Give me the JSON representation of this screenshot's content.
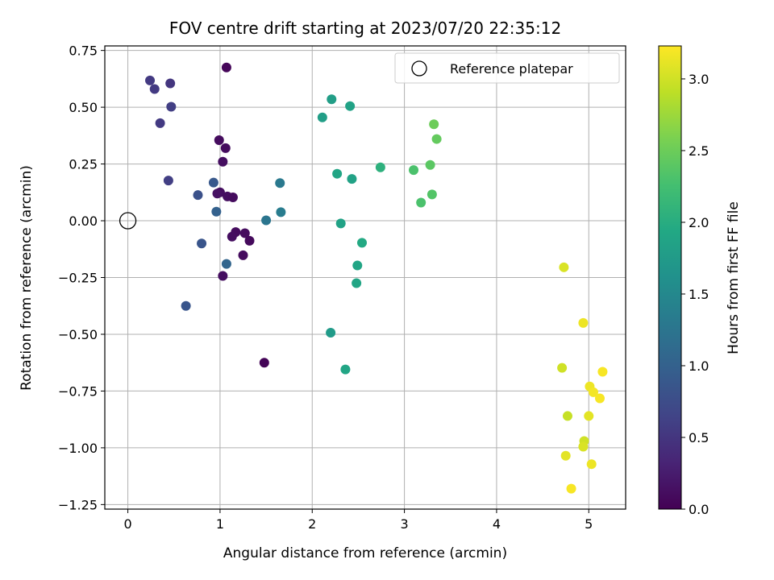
{
  "chart_data": {
    "type": "scatter",
    "title": "FOV centre drift starting at 2023/07/20 22:35:12",
    "xlabel": "Angular distance from reference (arcmin)",
    "ylabel": "Rotation from reference (arcmin)",
    "xlim": [
      -0.25,
      5.4
    ],
    "ylim": [
      -1.27,
      0.77
    ],
    "xticks": [
      0,
      1,
      2,
      3,
      4,
      5
    ],
    "xtick_labels": [
      "0",
      "1",
      "2",
      "3",
      "4",
      "5"
    ],
    "yticks": [
      0.75,
      0.5,
      0.25,
      0.0,
      -0.25,
      -0.5,
      -0.75,
      -1.0,
      -1.25
    ],
    "ytick_labels": [
      "0.75",
      "0.50",
      "0.25",
      "0.00",
      "−0.25",
      "−0.50",
      "−0.75",
      "−1.00",
      "−1.25"
    ],
    "grid": true,
    "legend": {
      "position": "top-right",
      "entries": [
        "Reference platepar"
      ]
    },
    "reference_point": {
      "x": 0.0,
      "y": 0.0
    },
    "colorbar": {
      "label": "Hours from first FF file",
      "colormap": "viridis",
      "range": [
        0.0,
        3.23
      ],
      "ticks": [
        0.0,
        0.5,
        1.0,
        1.5,
        2.0,
        2.5,
        3.0
      ],
      "tick_labels": [
        "0.0",
        "0.5",
        "1.0",
        "1.5",
        "2.0",
        "2.5",
        "3.0"
      ]
    },
    "points": [
      {
        "x": 1.07,
        "y": 0.675,
        "t": 0.05
      },
      {
        "x": 1.48,
        "y": -0.625,
        "t": 0.03
      },
      {
        "x": 0.99,
        "y": 0.355,
        "t": 0.1
      },
      {
        "x": 1.06,
        "y": 0.32,
        "t": 0.1
      },
      {
        "x": 1.03,
        "y": 0.26,
        "t": 0.12
      },
      {
        "x": 1.0,
        "y": 0.125,
        "t": 0.12
      },
      {
        "x": 0.97,
        "y": 0.12,
        "t": 0.15
      },
      {
        "x": 1.08,
        "y": 0.107,
        "t": 0.12
      },
      {
        "x": 1.14,
        "y": 0.103,
        "t": 0.1
      },
      {
        "x": 1.17,
        "y": -0.05,
        "t": 0.1
      },
      {
        "x": 1.13,
        "y": -0.07,
        "t": 0.12
      },
      {
        "x": 1.27,
        "y": -0.055,
        "t": 0.1
      },
      {
        "x": 1.32,
        "y": -0.088,
        "t": 0.08
      },
      {
        "x": 1.25,
        "y": -0.152,
        "t": 0.1
      },
      {
        "x": 1.03,
        "y": -0.243,
        "t": 0.12
      },
      {
        "x": 0.24,
        "y": 0.618,
        "t": 0.55
      },
      {
        "x": 0.29,
        "y": 0.58,
        "t": 0.55
      },
      {
        "x": 0.46,
        "y": 0.605,
        "t": 0.5
      },
      {
        "x": 0.47,
        "y": 0.502,
        "t": 0.6
      },
      {
        "x": 0.35,
        "y": 0.43,
        "t": 0.55
      },
      {
        "x": 0.44,
        "y": 0.177,
        "t": 0.6
      },
      {
        "x": 0.76,
        "y": 0.113,
        "t": 0.8
      },
      {
        "x": 0.93,
        "y": 0.168,
        "t": 0.9
      },
      {
        "x": 0.96,
        "y": 0.04,
        "t": 1.0
      },
      {
        "x": 0.8,
        "y": -0.1,
        "t": 0.85
      },
      {
        "x": 0.63,
        "y": -0.375,
        "t": 0.85
      },
      {
        "x": 1.07,
        "y": -0.19,
        "t": 1.05
      },
      {
        "x": 1.5,
        "y": 0.002,
        "t": 1.25
      },
      {
        "x": 1.65,
        "y": 0.166,
        "t": 1.3
      },
      {
        "x": 1.66,
        "y": 0.038,
        "t": 1.35
      },
      {
        "x": 2.21,
        "y": 0.535,
        "t": 1.8
      },
      {
        "x": 2.41,
        "y": 0.505,
        "t": 1.85
      },
      {
        "x": 2.11,
        "y": 0.455,
        "t": 1.8
      },
      {
        "x": 2.27,
        "y": 0.207,
        "t": 1.9
      },
      {
        "x": 2.43,
        "y": 0.184,
        "t": 1.85
      },
      {
        "x": 2.74,
        "y": 0.235,
        "t": 2.05
      },
      {
        "x": 2.31,
        "y": -0.012,
        "t": 1.85
      },
      {
        "x": 2.54,
        "y": -0.097,
        "t": 1.95
      },
      {
        "x": 2.49,
        "y": -0.197,
        "t": 1.9
      },
      {
        "x": 2.48,
        "y": -0.275,
        "t": 1.9
      },
      {
        "x": 2.2,
        "y": -0.493,
        "t": 1.75
      },
      {
        "x": 2.36,
        "y": -0.655,
        "t": 1.9
      },
      {
        "x": 3.32,
        "y": 0.425,
        "t": 2.5
      },
      {
        "x": 3.35,
        "y": 0.36,
        "t": 2.45
      },
      {
        "x": 3.1,
        "y": 0.223,
        "t": 2.3
      },
      {
        "x": 3.28,
        "y": 0.246,
        "t": 2.4
      },
      {
        "x": 3.3,
        "y": 0.116,
        "t": 2.35
      },
      {
        "x": 3.18,
        "y": 0.08,
        "t": 2.3
      },
      {
        "x": 4.73,
        "y": -0.205,
        "t": 3.05
      },
      {
        "x": 4.94,
        "y": -0.45,
        "t": 3.15
      },
      {
        "x": 4.71,
        "y": -0.648,
        "t": 3.0
      },
      {
        "x": 5.15,
        "y": -0.665,
        "t": 3.2
      },
      {
        "x": 5.01,
        "y": -0.73,
        "t": 3.15
      },
      {
        "x": 5.05,
        "y": -0.755,
        "t": 3.18
      },
      {
        "x": 5.12,
        "y": -0.782,
        "t": 3.2
      },
      {
        "x": 4.77,
        "y": -0.86,
        "t": 2.95
      },
      {
        "x": 5.0,
        "y": -0.86,
        "t": 3.1
      },
      {
        "x": 4.95,
        "y": -0.97,
        "t": 3.0
      },
      {
        "x": 4.94,
        "y": -0.995,
        "t": 3.05
      },
      {
        "x": 4.75,
        "y": -1.035,
        "t": 3.1
      },
      {
        "x": 5.03,
        "y": -1.072,
        "t": 3.15
      },
      {
        "x": 4.81,
        "y": -1.18,
        "t": 3.2
      }
    ]
  }
}
